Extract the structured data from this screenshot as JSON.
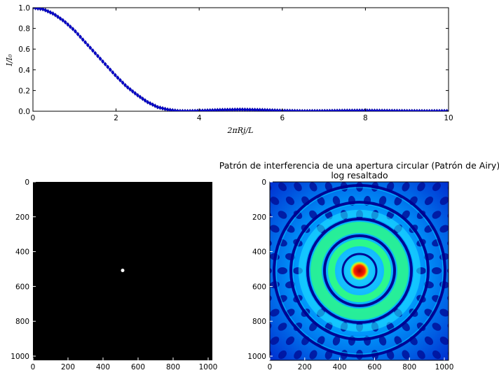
{
  "chart_data": [
    {
      "type": "line",
      "xlabel": "2πRj/L",
      "ylabel": "I/I₀",
      "xlim": [
        0,
        10
      ],
      "ylim": [
        0,
        1.0
      ],
      "xticks": [
        "0",
        "2",
        "4",
        "6",
        "8",
        "10"
      ],
      "yticks": [
        "0.0",
        "0.2",
        "0.4",
        "0.6",
        "0.8",
        "1.0"
      ],
      "marker": "diamond",
      "color": "#0000cc",
      "grid": false,
      "x": [
        0,
        0.25,
        0.5,
        0.75,
        1.0,
        1.25,
        1.5,
        1.75,
        2.0,
        2.25,
        2.5,
        2.75,
        3.0,
        3.25,
        3.5,
        3.75,
        4.0,
        4.5,
        5.0,
        5.5,
        6.0,
        6.5,
        7.0,
        7.5,
        8.0,
        8.5,
        9.0,
        9.5,
        10.0
      ],
      "y": [
        1.0,
        0.985,
        0.94,
        0.87,
        0.78,
        0.67,
        0.56,
        0.45,
        0.34,
        0.24,
        0.16,
        0.09,
        0.04,
        0.015,
        0.002,
        0.001,
        0.004,
        0.012,
        0.016,
        0.012,
        0.005,
        0.001,
        0.002,
        0.005,
        0.006,
        0.004,
        0.002,
        0.001,
        0.002
      ]
    },
    {
      "type": "heatmap",
      "title": "",
      "colormap": "gray",
      "xticks": [
        "0",
        "200",
        "400",
        "600",
        "800",
        "1000"
      ],
      "yticks": [
        "0",
        "200",
        "400",
        "600",
        "800",
        "1000"
      ],
      "xlim": [
        0,
        1024
      ],
      "ylim": [
        1024,
        0
      ],
      "spot_center": [
        512,
        512
      ]
    },
    {
      "type": "heatmap",
      "title": "Patrón de interferencia de una apertura circular (Patrón de Airy)",
      "subtitle": "log resaltado",
      "colormap": "jet",
      "xticks": [
        "0",
        "200",
        "400",
        "600",
        "800",
        "1000"
      ],
      "yticks": [
        "0",
        "200",
        "400",
        "600",
        "800",
        "1000"
      ],
      "xlim": [
        0,
        1024
      ],
      "ylim": [
        1024,
        0
      ],
      "spot_center": [
        512,
        512
      ],
      "ring_radii": [
        35,
        70,
        110,
        150,
        195,
        240
      ],
      "colors": {
        "deep": "#00008f",
        "ring": "#00c8ff",
        "mid": "#30ff80",
        "peak": "#c00000"
      }
    }
  ]
}
